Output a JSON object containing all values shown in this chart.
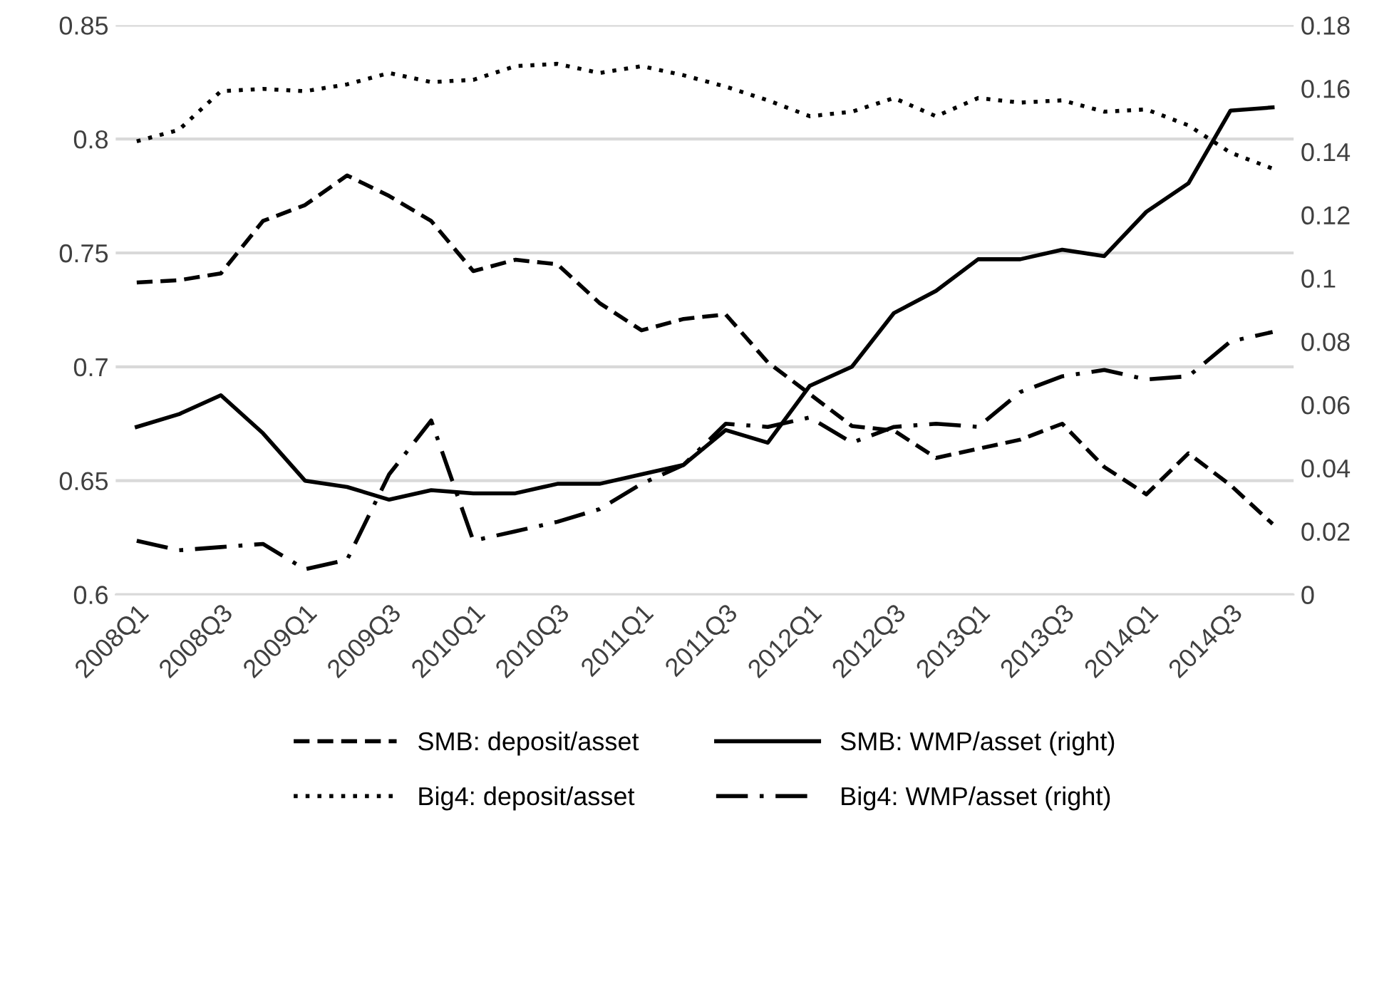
{
  "chart_data": {
    "type": "line",
    "categories": [
      "2008Q1",
      null,
      "2008Q3",
      null,
      "2009Q1",
      null,
      "2009Q3",
      null,
      "2010Q1",
      null,
      "2010Q3",
      null,
      "2011Q1",
      null,
      "2011Q3",
      null,
      "2012Q1",
      null,
      "2012Q3",
      null,
      "2013Q1",
      null,
      "2013Q3",
      null,
      "2014Q1",
      null,
      "2014Q3",
      null
    ],
    "series": [
      {
        "name": "SMB: deposit/asset",
        "color": "#000000",
        "line_style": "dashed",
        "values": [
          0.737,
          0.738,
          0.741,
          0.764,
          0.771,
          0.784,
          0.775,
          0.764,
          0.742,
          0.747,
          0.745,
          0.728,
          0.716,
          0.721,
          0.723,
          0.702,
          0.688,
          0.674,
          0.672,
          0.66,
          0.664,
          0.668,
          0.675,
          0.656,
          0.644,
          0.662,
          0.648,
          0.631
        ]
      },
      {
        "name": "Big4: deposit/asset",
        "color": "#000000",
        "line_style": "dotted",
        "values": [
          0.799,
          0.804,
          0.821,
          0.822,
          0.821,
          0.824,
          0.829,
          0.825,
          0.826,
          0.832,
          0.833,
          0.829,
          0.832,
          0.828,
          0.823,
          0.817,
          0.81,
          0.812,
          0.818,
          0.81,
          0.818,
          0.816,
          0.817,
          0.812,
          0.813,
          0.806,
          0.794,
          0.787
        ]
      },
      {
        "name": "SMB: WMP/asset (right)",
        "color": "#000000",
        "line_style": "solid",
        "axis": "y2",
        "values": [
          0.053,
          0.057,
          0.063,
          0.051,
          0.036,
          0.034,
          0.03,
          0.033,
          0.032,
          0.032,
          0.035,
          0.035,
          0.038,
          0.041,
          0.052,
          0.048,
          0.066,
          0.072,
          0.089,
          0.096,
          0.106,
          0.106,
          0.109,
          0.107,
          0.121,
          0.13,
          0.153,
          0.154
        ]
      },
      {
        "name": "Big4: WMP/asset (right)",
        "color": "#000000",
        "line_style": "dashdot",
        "axis": "y2",
        "values": [
          0.017,
          0.014,
          0.015,
          0.016,
          0.008,
          0.011,
          0.038,
          0.055,
          0.017,
          0.02,
          0.023,
          0.027,
          0.035,
          0.041,
          0.054,
          0.053,
          0.056,
          0.048,
          0.053,
          0.054,
          0.053,
          0.064,
          0.069,
          0.071,
          0.068,
          0.069,
          0.08,
          0.083
        ]
      }
    ],
    "ylim": [
      0.6,
      0.85
    ],
    "yticks": [
      0.6,
      0.65,
      0.7,
      0.75,
      0.8,
      0.85
    ],
    "y2lim": [
      0,
      0.18
    ],
    "y2ticks": [
      0,
      0.02,
      0.04,
      0.06,
      0.08,
      0.1,
      0.12,
      0.14,
      0.16,
      0.18
    ],
    "grid": "y",
    "legend": "bottom",
    "marker": "none"
  }
}
